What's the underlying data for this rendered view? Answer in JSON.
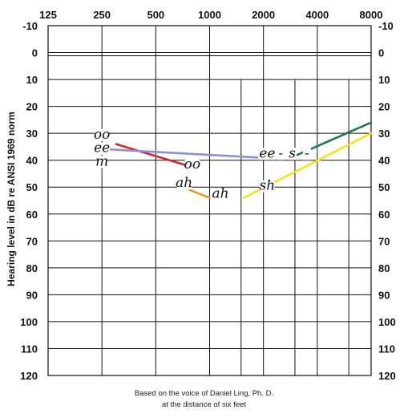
{
  "chart_data": {
    "type": "line",
    "ylabel": "Hearing level in dB re ANSI 1969 norm",
    "x_scale": "log",
    "x_ticks": [
      125,
      250,
      500,
      1000,
      2000,
      4000,
      8000
    ],
    "x_tick_labels": [
      "125",
      "250",
      "500",
      "1000",
      "2000",
      "4000",
      "8000"
    ],
    "y_ticks": [
      -10,
      0,
      10,
      20,
      30,
      40,
      50,
      60,
      70,
      80,
      90,
      100,
      110,
      120
    ],
    "y_tick_labels": [
      "-10",
      "0",
      "10",
      "20",
      "30",
      "40",
      "50",
      "60",
      "70",
      "80",
      "90",
      "100",
      "110",
      "120"
    ],
    "xlim": [
      125,
      8000
    ],
    "ylim": [
      -10,
      120
    ],
    "y_inverted": true,
    "grid": true,
    "series": [
      {
        "color": "#d62828",
        "x": [
          300,
          750
        ],
        "y": [
          34,
          42
        ]
      },
      {
        "color": "#8b8fd9",
        "x": [
          280,
          1850
        ],
        "y": [
          36,
          39
        ]
      },
      {
        "color": "#f0932b",
        "x": [
          770,
          1000
        ],
        "y": [
          51,
          54
        ]
      },
      {
        "color": "#1d7a4e",
        "x": [
          3100,
          8000
        ],
        "y": [
          38,
          26
        ]
      },
      {
        "color": "#f4e21b",
        "x": [
          1550,
          8000
        ],
        "y": [
          54,
          30
        ]
      }
    ],
    "annotations": [
      {
        "text": "oo",
        "x": 250,
        "y": 32
      },
      {
        "text": "ee",
        "x": 250,
        "y": 37
      },
      {
        "text": "m",
        "x": 250,
        "y": 42
      },
      {
        "text": "oo",
        "x": 800,
        "y": 43
      },
      {
        "text": "ah",
        "x": 720,
        "y": 50
      },
      {
        "text": "ah",
        "x": 1150,
        "y": 54
      },
      {
        "text": "ee",
        "x": 2100,
        "y": 39
      },
      {
        "text": "-",
        "x": 2500,
        "y": 39
      },
      {
        "text": "s",
        "x": 2900,
        "y": 39
      },
      {
        "text": "-",
        "x": 3500,
        "y": 39
      },
      {
        "text": "sh",
        "x": 2100,
        "y": 51
      }
    ],
    "caption": [
      "Based on the voice of Daniel Ling, Ph. D.",
      "at the distance of six feet"
    ]
  }
}
